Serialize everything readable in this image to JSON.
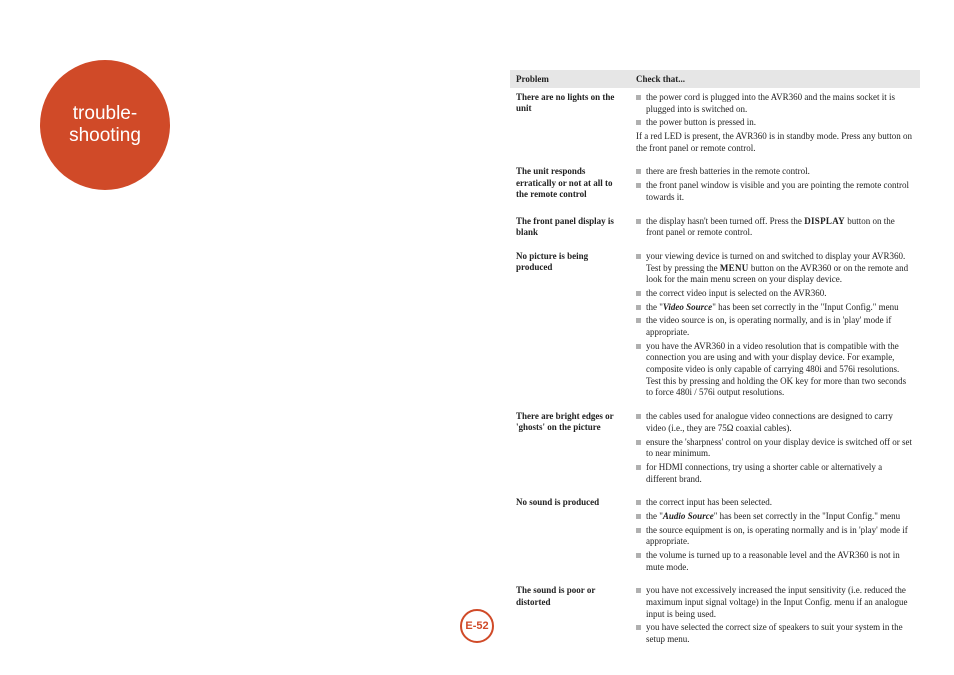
{
  "badge": {
    "text": "trouble-\nshooting",
    "bg": "#d04a28",
    "fg": "#ffffff"
  },
  "header": {
    "problem": "Problem",
    "check": "Check that..."
  },
  "rows": [
    {
      "problem": "There are no lights on the unit",
      "items": [
        "the power cord is plugged into the AVR360 and the mains socket it is plugged into is switched on.",
        "the power button is pressed in."
      ],
      "note": "If a red LED is present, the AVR360 is in standby mode. Press any button on the front panel or remote control."
    },
    {
      "problem": "The unit responds erratically or not at all to the remote control",
      "items": [
        "there are fresh batteries in the remote control.",
        "the front panel window is visible and you are pointing the remote control towards it."
      ]
    },
    {
      "problem": "The front panel display is blank",
      "items": [],
      "special_display": true
    },
    {
      "problem": "No picture is being produced",
      "items": [],
      "special_picture": true
    },
    {
      "problem": "There are bright edges or 'ghosts' on the picture",
      "items": [
        "the cables used for analogue video connections are designed to carry video (i.e., they are 75Ω coaxial cables).",
        "ensure the 'sharpness' control on your display device is switched off or set to near minimum.",
        "for HDMI connections, try using a shorter cable or alternatively a different brand."
      ]
    },
    {
      "problem": "No sound is produced",
      "items": [],
      "special_sound": true
    },
    {
      "problem": "The sound is poor or distorted",
      "items": [
        "you have not excessively increased the input sensitivity (i.e. reduced the maximum input signal voltage) in the Input Config. menu if an analogue input is being used.",
        "you have selected the correct size of speakers to suit your system in the setup menu."
      ]
    }
  ],
  "special": {
    "display_item": "the display hasn't been turned off. Press the ",
    "display_btn": "DISPLAY",
    "display_tail": " button on the front panel or remote control.",
    "pic_1a": "your viewing device is turned on and switched to display your AVR360. Test by pressing the ",
    "pic_menu": "MENU",
    "pic_1b": " button on the AVR360 or on the remote and look for the main menu screen on your display device.",
    "pic_2": "the correct video input is selected on the AVR360.",
    "pic_3a": "the \"",
    "pic_vs": "Video Source",
    "pic_3b": "\" has been set correctly in the \"Input Config.\" menu",
    "pic_4": "the video source is on, is operating normally, and is in 'play' mode if appropriate.",
    "pic_5": "you have the AVR360 in a video resolution that is compatible with the connection you are using and with your display device. For example, composite video is only capable of carrying 480i and 576i resolutions. Test this by pressing and holding the OK key for more than two seconds to force 480i / 576i output resolutions.",
    "snd_1": "the correct input has been selected.",
    "snd_2a": "the \"",
    "snd_as": "Audio Source",
    "snd_2b": "\" has been set correctly in the \"Input Config.\" menu",
    "snd_3": "the source equipment is on, is operating normally and is in 'play' mode if appropriate.",
    "snd_4": "the volume is turned up to a reasonable level and the AVR360 is not in mute mode."
  },
  "page_num": {
    "text": "E-52",
    "color": "#d04a28"
  }
}
